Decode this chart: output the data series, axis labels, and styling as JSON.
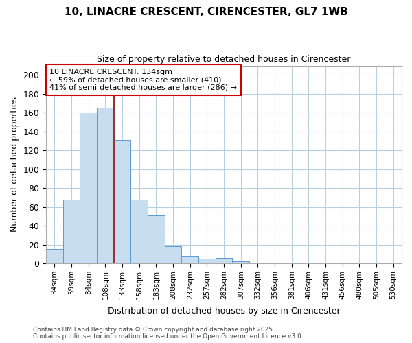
{
  "title1": "10, LINACRE CRESCENT, CIRENCESTER, GL7 1WB",
  "title2": "Size of property relative to detached houses in Cirencester",
  "xlabel": "Distribution of detached houses by size in Cirencester",
  "ylabel": "Number of detached properties",
  "bins": [
    "34sqm",
    "59sqm",
    "84sqm",
    "108sqm",
    "133sqm",
    "158sqm",
    "183sqm",
    "208sqm",
    "232sqm",
    "257sqm",
    "282sqm",
    "307sqm",
    "332sqm",
    "356sqm",
    "381sqm",
    "406sqm",
    "431sqm",
    "456sqm",
    "480sqm",
    "505sqm",
    "530sqm"
  ],
  "bar_heights": [
    15,
    68,
    160,
    165,
    131,
    68,
    51,
    18,
    8,
    5,
    6,
    2,
    1,
    0,
    0,
    0,
    0,
    0,
    0,
    0,
    1
  ],
  "bar_color": "#c9ddf0",
  "bar_edgecolor": "#5b9bd5",
  "grid_color": "#b8cfe0",
  "bg_color": "#ffffff",
  "fig_bg_color": "#ffffff",
  "vline_color": "#993333",
  "vline_x_index": 4,
  "annotation_text_line1": "10 LINACRE CRESCENT: 134sqm",
  "annotation_text_line2": "← 59% of detached houses are smaller (410)",
  "annotation_text_line3": "41% of semi-detached houses are larger (286) →",
  "annotation_box_color": "#ffffff",
  "annotation_border_color": "#cc0000",
  "footer1": "Contains HM Land Registry data © Crown copyright and database right 2025.",
  "footer2": "Contains public sector information licensed under the Open Government Licence v3.0.",
  "ylim": [
    0,
    210
  ],
  "yticks": [
    0,
    20,
    40,
    60,
    80,
    100,
    120,
    140,
    160,
    180,
    200
  ]
}
